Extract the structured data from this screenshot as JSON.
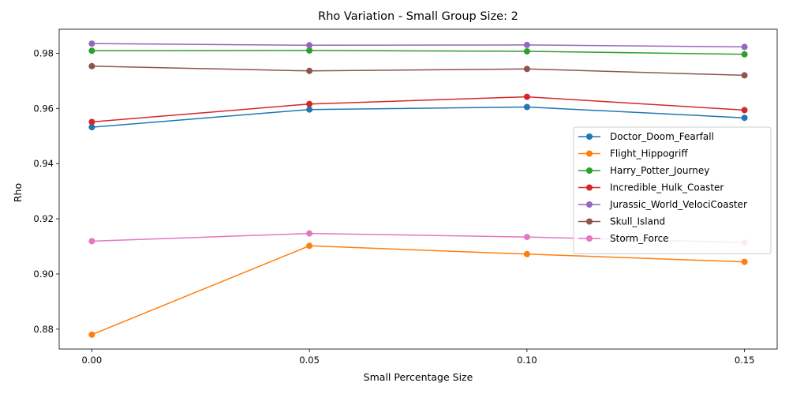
{
  "chart_data": {
    "type": "line",
    "title": "Rho Variation - Small Group Size: 2",
    "xlabel": "Small Percentage Size",
    "ylabel": "Rho",
    "x": [
      0.0,
      0.05,
      0.1,
      0.15
    ],
    "x_tick_labels": [
      "0.00",
      "0.05",
      "0.10",
      "0.15"
    ],
    "y_ticks": [
      0.88,
      0.9,
      0.92,
      0.94,
      0.96,
      0.98
    ],
    "y_tick_labels": [
      "0.88",
      "0.90",
      "0.92",
      "0.94",
      "0.96",
      "0.98"
    ],
    "xlim": [
      -0.0075,
      0.1575
    ],
    "ylim": [
      0.8728,
      0.9887
    ],
    "grid": false,
    "legend_position": "center-right",
    "marker": "circle",
    "series": [
      {
        "name": "Doctor_Doom_Fearfall",
        "color": "#1f77b4",
        "values": [
          0.9532,
          0.9596,
          0.9605,
          0.9566
        ]
      },
      {
        "name": "Flight_Hippogriff",
        "color": "#ff7f0e",
        "values": [
          0.878,
          0.9102,
          0.9072,
          0.9044
        ]
      },
      {
        "name": "Harry_Potter_Journey",
        "color": "#2ca02c",
        "values": [
          0.9809,
          0.981,
          0.9807,
          0.9796
        ]
      },
      {
        "name": "Incredible_Hulk_Coaster",
        "color": "#d62728",
        "values": [
          0.9551,
          0.9616,
          0.9642,
          0.9594
        ]
      },
      {
        "name": "Jurassic_World_VelociCoaster",
        "color": "#9467bd",
        "values": [
          0.9835,
          0.9829,
          0.983,
          0.9823
        ]
      },
      {
        "name": "Skull_Island",
        "color": "#8c564b",
        "values": [
          0.9753,
          0.9736,
          0.9743,
          0.972
        ]
      },
      {
        "name": "Storm_Force",
        "color": "#e377c2",
        "values": [
          0.9119,
          0.9147,
          0.9134,
          0.9114
        ]
      }
    ]
  }
}
